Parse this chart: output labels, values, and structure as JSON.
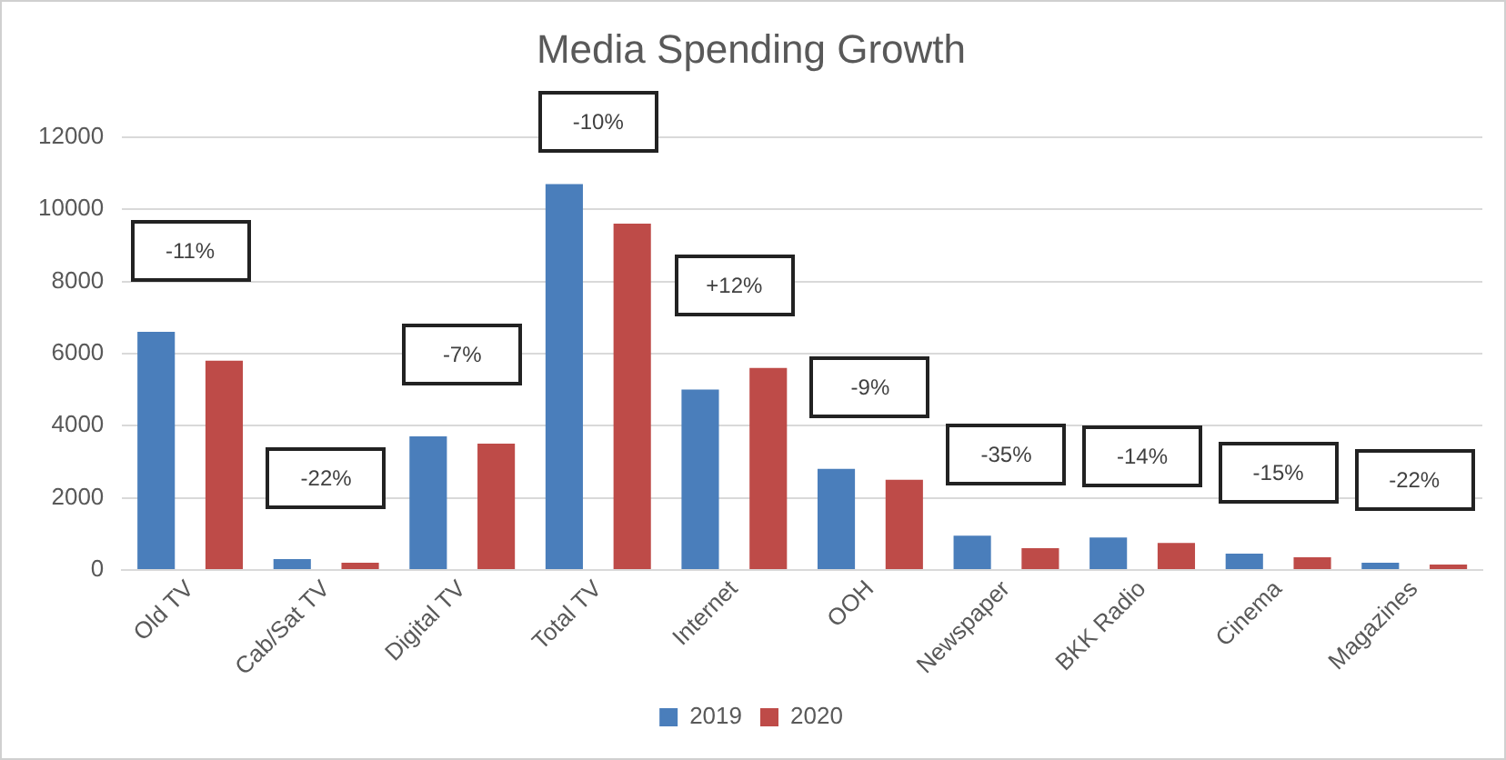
{
  "chart_data": {
    "type": "bar",
    "title": "Media Spending Growth",
    "categories": [
      "Old TV",
      "Cab/Sat TV",
      "Digital TV",
      "Total TV",
      "Internet",
      "OOH",
      "Newspaper",
      "BKK Radio",
      "Cinema",
      "Magazines"
    ],
    "series": [
      {
        "name": "2019",
        "color": "#4a7ebb",
        "values": [
          6600,
          300,
          3700,
          10700,
          5000,
          2800,
          950,
          900,
          450,
          200
        ]
      },
      {
        "name": "2020",
        "color": "#be4b48",
        "values": [
          5800,
          200,
          3500,
          9600,
          5600,
          2500,
          600,
          750,
          350,
          150
        ]
      }
    ],
    "ylim": [
      0,
      12000
    ],
    "yticks": [
      0,
      2000,
      4000,
      6000,
      8000,
      10000,
      12000
    ],
    "grid": "y",
    "legend": "bottom",
    "annotations": [
      "-11%",
      "-22%",
      "-7%",
      "-10%",
      "+12%",
      "-9%",
      "-35%",
      "-14%",
      "-15%",
      "-22%"
    ]
  }
}
